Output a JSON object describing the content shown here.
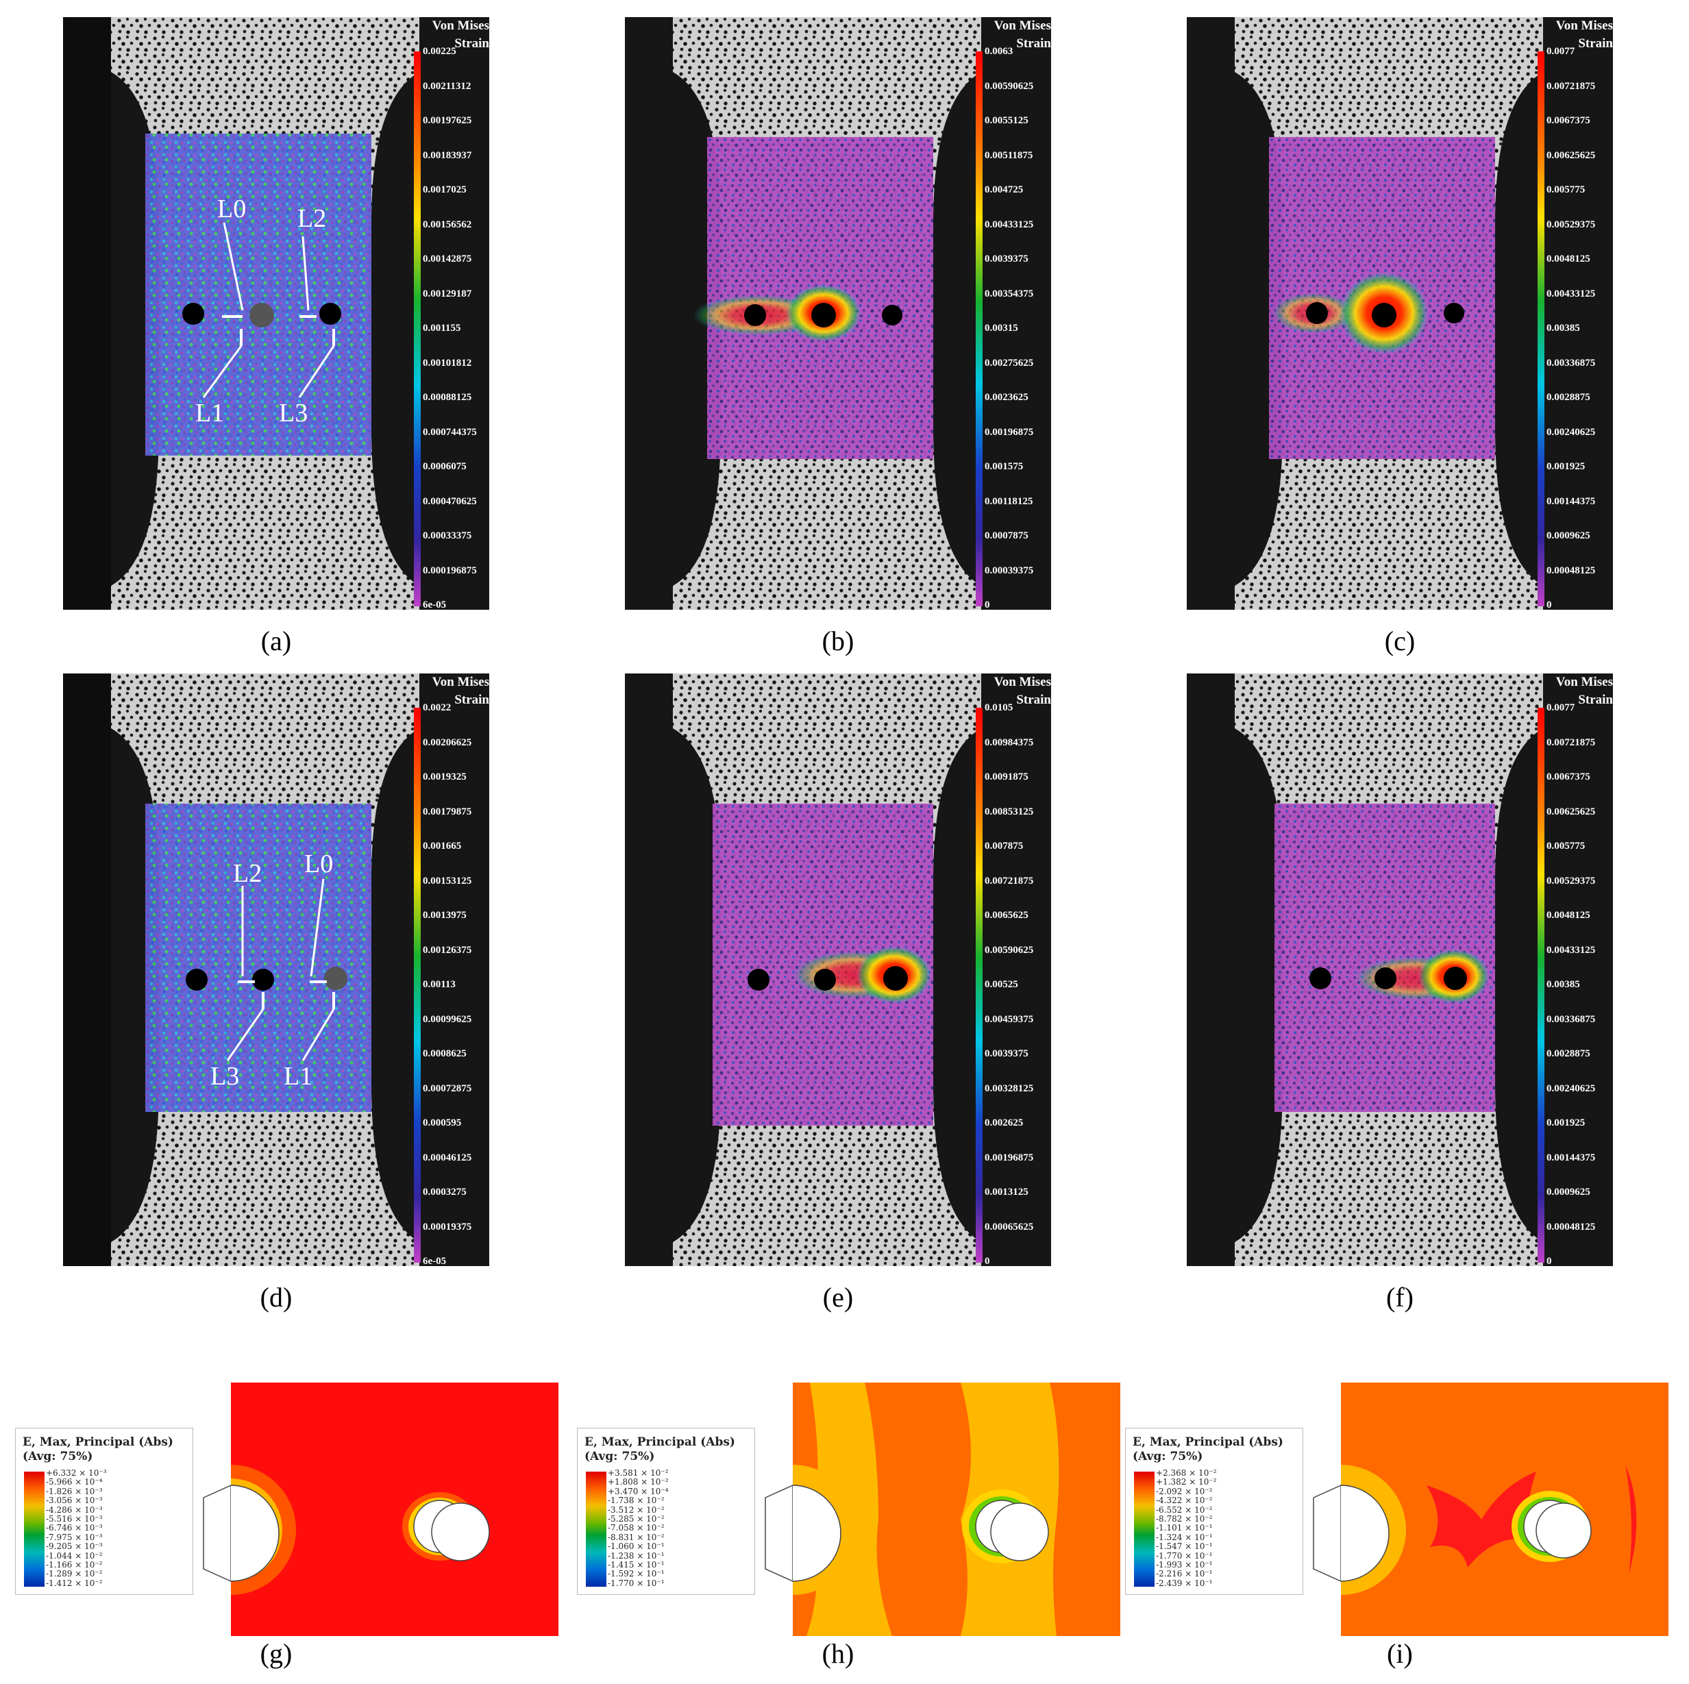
{
  "panels": [
    {
      "label": "(a)",
      "colorbar": {
        "title_lines": [
          "Von Mises",
          "Strain"
        ],
        "ticks": [
          "0.00225",
          "0.00211312",
          "0.00197625",
          "0.00183937",
          "0.0017025",
          "0.00156562",
          "0.00142875",
          "0.00129187",
          "0.001155",
          "0.00101812",
          "0.00088125",
          "0.000744375",
          "0.0006075",
          "0.000470625",
          "0.00033375",
          "0.000196875",
          "6e-05"
        ]
      },
      "annotations": [
        {
          "text": "L0"
        },
        {
          "text": "L2"
        },
        {
          "text": "L1"
        },
        {
          "text": "L3"
        }
      ]
    },
    {
      "label": "(b)",
      "colorbar": {
        "title_lines": [
          "Von Mises",
          "Strain"
        ],
        "ticks": [
          "0.0063",
          "0.00590625",
          "0.0055125",
          "0.00511875",
          "0.004725",
          "0.00433125",
          "0.0039375",
          "0.00354375",
          "0.00315",
          "0.00275625",
          "0.0023625",
          "0.00196875",
          "0.001575",
          "0.00118125",
          "0.0007875",
          "0.00039375",
          "0"
        ]
      },
      "annotations": []
    },
    {
      "label": "(c)",
      "colorbar": {
        "title_lines": [
          "Von Mises",
          "Strain"
        ],
        "ticks": [
          "0.0077",
          "0.00721875",
          "0.0067375",
          "0.00625625",
          "0.005775",
          "0.00529375",
          "0.0048125",
          "0.00433125",
          "0.00385",
          "0.00336875",
          "0.0028875",
          "0.00240625",
          "0.001925",
          "0.00144375",
          "0.0009625",
          "0.00048125",
          "0"
        ]
      },
      "annotations": []
    },
    {
      "label": "(d)",
      "colorbar": {
        "title_lines": [
          "Von Mises",
          "Strain"
        ],
        "ticks": [
          "0.0022",
          "0.00206625",
          "0.0019325",
          "0.00179875",
          "0.001665",
          "0.00153125",
          "0.0013975",
          "0.00126375",
          "0.00113",
          "0.00099625",
          "0.0008625",
          "0.00072875",
          "0.000595",
          "0.00046125",
          "0.0003275",
          "0.00019375",
          "6e-05"
        ]
      },
      "annotations": [
        {
          "text": "L2"
        },
        {
          "text": "L0"
        },
        {
          "text": "L3"
        },
        {
          "text": "L1"
        }
      ]
    },
    {
      "label": "(e)",
      "colorbar": {
        "title_lines": [
          "Von Mises",
          "Strain"
        ],
        "ticks": [
          "0.0105",
          "0.00984375",
          "0.0091875",
          "0.00853125",
          "0.007875",
          "0.00721875",
          "0.0065625",
          "0.00590625",
          "0.00525",
          "0.00459375",
          "0.0039375",
          "0.00328125",
          "0.002625",
          "0.00196875",
          "0.0013125",
          "0.00065625",
          "0"
        ]
      },
      "annotations": []
    },
    {
      "label": "(f)",
      "colorbar": {
        "title_lines": [
          "Von Mises",
          "Strain"
        ],
        "ticks": [
          "0.0077",
          "0.00721875",
          "0.0067375",
          "0.00625625",
          "0.005775",
          "0.00529375",
          "0.0048125",
          "0.00433125",
          "0.00385",
          "0.00336875",
          "0.0028875",
          "0.00240625",
          "0.001925",
          "0.00144375",
          "0.0009625",
          "0.00048125",
          "0"
        ]
      },
      "annotations": []
    }
  ],
  "fem_panels": [
    {
      "label": "(g)",
      "legend": {
        "title": "E, Max, Principal (Abs)",
        "avg": "(Avg: 75%)",
        "values": [
          "+6.332 × 10⁻³",
          "-5.966 × 10⁻⁴",
          "-1.826 × 10⁻³",
          "-3.056 × 10⁻³",
          "-4.286 × 10⁻³",
          "-5.516 × 10⁻³",
          "-6.746 × 10⁻³",
          "-7.975 × 10⁻³",
          "-9.205 × 10⁻³",
          "-1.044 × 10⁻²",
          "-1.166 × 10⁻²",
          "-1.289 × 10⁻²",
          "-1.412 × 10⁻²"
        ]
      }
    },
    {
      "label": "(h)",
      "legend": {
        "title": "E, Max, Principal (Abs)",
        "avg": "(Avg: 75%)",
        "values": [
          "+3.581 × 10⁻²",
          "+1.808 × 10⁻²",
          "+3.470 × 10⁻⁴",
          "-1.738 × 10⁻²",
          "-3.512 × 10⁻²",
          "-5.285 × 10⁻²",
          "-7.058 × 10⁻²",
          "-8.831 × 10⁻²",
          "-1.060 × 10⁻¹",
          "-1.238 × 10⁻¹",
          "-1.415 × 10⁻¹",
          "-1.592 × 10⁻¹",
          "-1.770 × 10⁻¹"
        ]
      }
    },
    {
      "label": "(i)",
      "legend": {
        "title": "E, Max, Principal (Abs)",
        "avg": "(Avg: 75%)",
        "values": [
          "+2.368 × 10⁻²",
          "+1.382 × 10⁻²",
          "-2.092 × 10⁻²",
          "-4.322 × 10⁻²",
          "-6.552 × 10⁻²",
          "-8.782 × 10⁻²",
          "-1.101 × 10⁻¹",
          "-1.324 × 10⁻¹",
          "-1.547 × 10⁻¹",
          "-1.770 × 10⁻¹",
          "-1.993 × 10⁻¹",
          "-2.216 × 10⁻¹",
          "-2.439 × 10⁻¹"
        ]
      }
    }
  ]
}
